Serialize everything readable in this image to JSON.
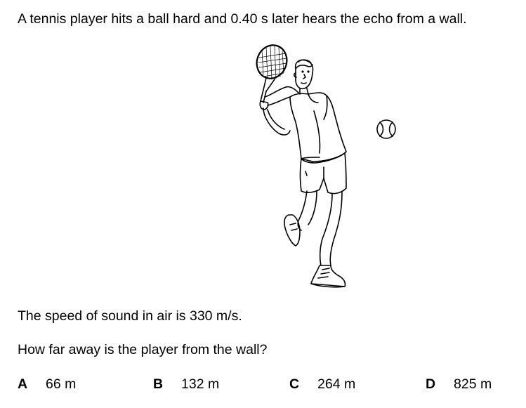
{
  "question": {
    "stem": "A tennis player hits a ball hard and 0.40 s later hears the echo from a wall.",
    "info": "The speed of sound in air is 330 m/s.",
    "prompt": "How far away is the player from the wall?"
  },
  "options": [
    {
      "letter": "A",
      "value": "66 m"
    },
    {
      "letter": "B",
      "value": "132 m"
    },
    {
      "letter": "C",
      "value": "264 m"
    },
    {
      "letter": "D",
      "value": "825 m"
    }
  ],
  "figure": {
    "icon": "tennis-player-illustration",
    "ball_icon": "tennis-ball-icon"
  }
}
